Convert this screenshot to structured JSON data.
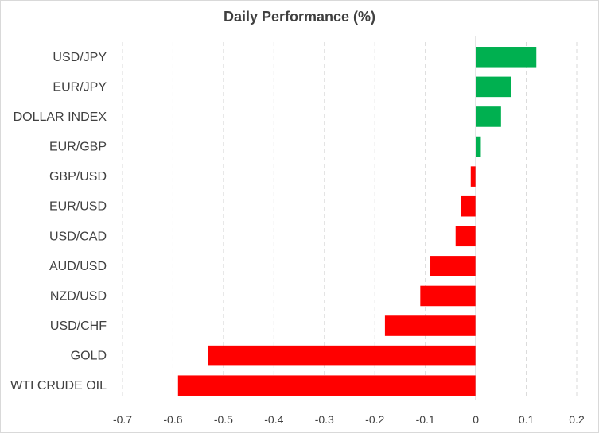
{
  "chart_data": {
    "type": "bar",
    "orientation": "horizontal",
    "title": "Daily Performance  (%)",
    "xlabel": "",
    "ylabel": "",
    "categories": [
      "USD/JPY",
      "EUR/JPY",
      "DOLLAR INDEX",
      "EUR/GBP",
      "GBP/USD",
      "EUR/USD",
      "USD/CAD",
      "AUD/USD",
      "NZD/USD",
      "USD/CHF",
      "GOLD",
      "WTI CRUDE OIL"
    ],
    "values": [
      0.12,
      0.07,
      0.05,
      0.01,
      -0.01,
      -0.03,
      -0.04,
      -0.09,
      -0.11,
      -0.18,
      -0.53,
      -0.59
    ],
    "xlim": [
      -0.7,
      0.2
    ],
    "xticks": [
      -0.7,
      -0.6,
      -0.5,
      -0.4,
      -0.3,
      -0.2,
      -0.1,
      0,
      0.1,
      0.2
    ],
    "xtick_labels": [
      "-0.7",
      "-0.6",
      "-0.5",
      "-0.4",
      "-0.3",
      "-0.2",
      "-0.1",
      "0",
      "0.1",
      "0.2"
    ],
    "grid": "vertical dashed",
    "legend": "none",
    "colors": {
      "positive": "#00b050",
      "negative": "#ff0000",
      "grid": "#d9d9d9",
      "axis": "#bfbfbf",
      "text": "#404040"
    }
  }
}
